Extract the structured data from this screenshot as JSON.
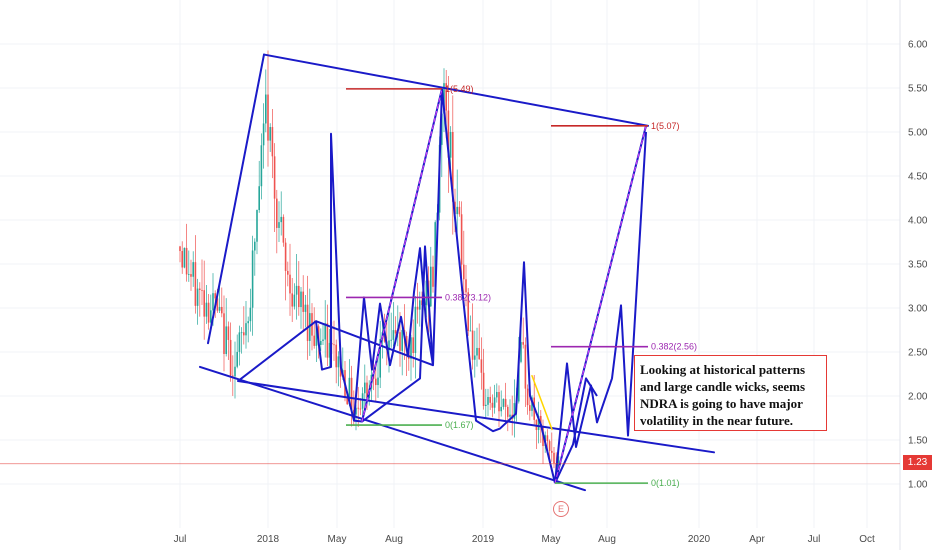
{
  "chart_data": {
    "type": "candlestick",
    "symbol": "NDRA",
    "x_tick_labels": [
      "Jul",
      "2018",
      "May",
      "Aug",
      "2019",
      "May",
      "Aug",
      "2020",
      "Apr",
      "Jul",
      "Oct"
    ],
    "y_tick_labels": [
      "1.00",
      "1.50",
      "2.00",
      "2.50",
      "3.00",
      "3.50",
      "4.00",
      "4.50",
      "5.00",
      "5.50",
      "6.00"
    ],
    "ylim": [
      0.5,
      6.3
    ],
    "grid": true,
    "last_price": 1.23,
    "last_price_label": "1.23",
    "colors": {
      "up": "#26a69a",
      "down": "#ef5350",
      "pattern_line": "#1a1ac8",
      "price_line": "#e53935",
      "fib_purple": "#9c27b0",
      "fib_green": "#4caf50",
      "fib_dashed": "#e040fb",
      "fib_red": "#c62828",
      "yellow_line": "#ffd600"
    },
    "fib_labels": [
      {
        "text": "1(5.49)",
        "value": 5.49
      },
      {
        "text": "1(5.07)",
        "value": 5.07
      },
      {
        "text": "0.382(3.12)",
        "value": 3.12
      },
      {
        "text": "0.382(2.56)",
        "value": 2.56
      },
      {
        "text": "0(1.67)",
        "value": 1.67
      },
      {
        "text": "0(1.01)",
        "value": 1.01
      }
    ],
    "annotation": "Looking at historical patterns and large candle wicks, seems NDRA is going to have major volatility in the near future.",
    "event_marker": "E"
  }
}
